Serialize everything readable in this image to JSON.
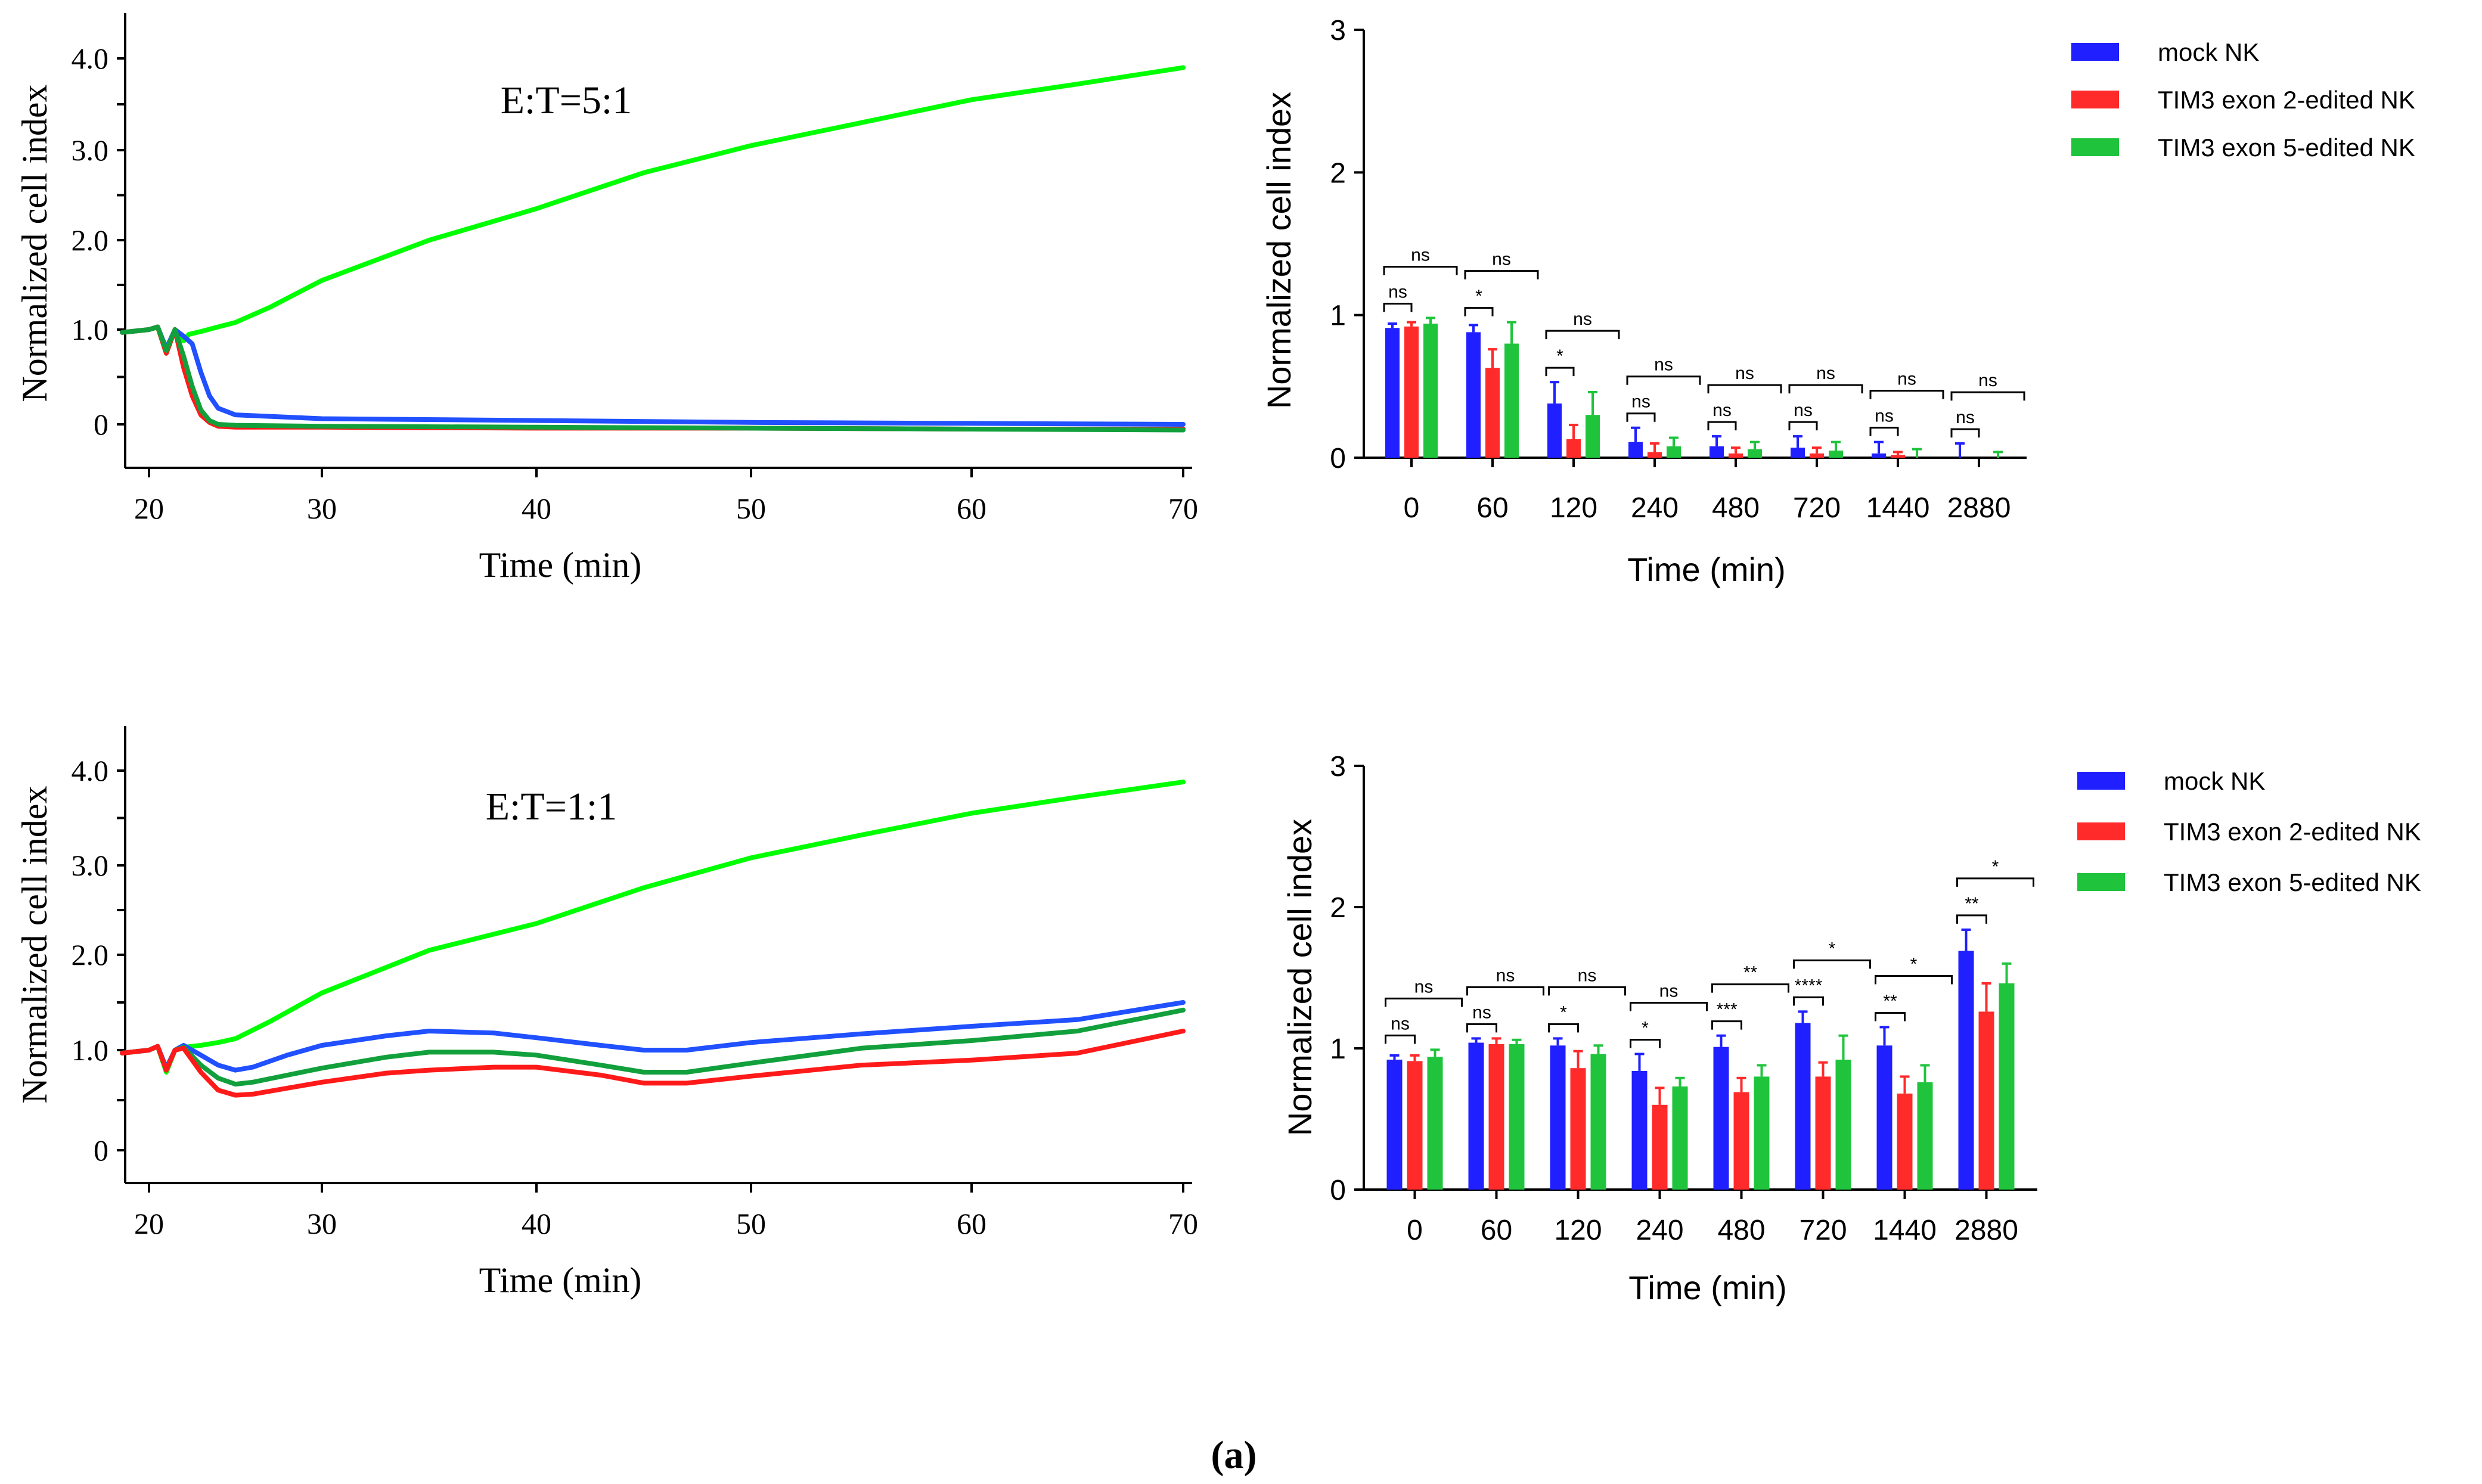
{
  "caption": "(a)",
  "chart_data": [
    {
      "id": "line_5_1",
      "type": "line",
      "annotation": "E:T=5:1",
      "xlabel": "Time (min)",
      "ylabel": "Normalized cell index",
      "xlim": [
        18.5,
        70.5
      ],
      "ylim": [
        -0.5,
        4.5
      ],
      "xticks": [
        "20",
        "30",
        "40",
        "50",
        "60",
        "70"
      ],
      "yticks": [
        "0",
        "1.0",
        "2.0",
        "3.0",
        "4.0"
      ],
      "grid": false,
      "series": [
        {
          "color": "#00ff00",
          "points": [
            [
              18.5,
              0.97
            ],
            [
              20,
              1.0
            ],
            [
              20.5,
              1.03
            ],
            [
              21,
              0.75
            ],
            [
              21.5,
              1.0
            ],
            [
              22,
              0.88
            ],
            [
              22.3,
              0.95
            ],
            [
              23,
              0.98
            ],
            [
              24,
              1.03
            ],
            [
              25,
              1.08
            ],
            [
              27,
              1.25
            ],
            [
              30,
              1.55
            ],
            [
              35,
              2.0
            ],
            [
              40,
              2.35
            ],
            [
              45,
              2.75
            ],
            [
              50,
              3.05
            ],
            [
              55,
              3.3
            ],
            [
              60,
              3.55
            ],
            [
              65,
              3.72
            ],
            [
              70,
              3.9
            ]
          ]
        },
        {
          "color": "#2050ff",
          "points": [
            [
              18.5,
              0.97
            ],
            [
              20,
              1.0
            ],
            [
              20.5,
              1.03
            ],
            [
              21,
              0.8
            ],
            [
              21.5,
              1.0
            ],
            [
              22,
              0.93
            ],
            [
              22.5,
              0.85
            ],
            [
              23,
              0.55
            ],
            [
              23.5,
              0.3
            ],
            [
              24,
              0.17
            ],
            [
              25,
              0.1
            ],
            [
              30,
              0.06
            ],
            [
              40,
              0.04
            ],
            [
              50,
              0.02
            ],
            [
              60,
              0.01
            ],
            [
              70,
              0.0
            ]
          ]
        },
        {
          "color": "#ff1a1a",
          "points": [
            [
              18.5,
              0.97
            ],
            [
              20,
              1.0
            ],
            [
              20.5,
              1.03
            ],
            [
              21,
              0.75
            ],
            [
              21.5,
              1.0
            ],
            [
              22,
              0.6
            ],
            [
              22.5,
              0.3
            ],
            [
              23,
              0.1
            ],
            [
              23.5,
              0.02
            ],
            [
              24,
              -0.02
            ],
            [
              25,
              -0.03
            ],
            [
              30,
              -0.03
            ],
            [
              40,
              -0.04
            ],
            [
              50,
              -0.04
            ],
            [
              60,
              -0.05
            ],
            [
              70,
              -0.05
            ]
          ]
        },
        {
          "color": "#12a03c",
          "points": [
            [
              18.5,
              0.97
            ],
            [
              20,
              1.0
            ],
            [
              20.5,
              1.03
            ],
            [
              21,
              0.78
            ],
            [
              21.5,
              1.0
            ],
            [
              22,
              0.72
            ],
            [
              22.5,
              0.4
            ],
            [
              23,
              0.15
            ],
            [
              23.5,
              0.04
            ],
            [
              24,
              0.0
            ],
            [
              25,
              -0.01
            ],
            [
              30,
              -0.02
            ],
            [
              40,
              -0.03
            ],
            [
              50,
              -0.04
            ],
            [
              60,
              -0.05
            ],
            [
              70,
              -0.06
            ]
          ]
        }
      ]
    },
    {
      "id": "bar_5_1",
      "type": "bar",
      "xlabel": "Time (min)",
      "ylabel": "Normalized cell index",
      "ylim": [
        0,
        3
      ],
      "yticks": [
        "0",
        "1",
        "2",
        "3"
      ],
      "categories": [
        "0",
        "60",
        "120",
        "240",
        "480",
        "720",
        "1440",
        "2880"
      ],
      "series": [
        {
          "name": "mock NK",
          "color": "#1f1fff",
          "values": [
            0.91,
            0.88,
            0.38,
            0.11,
            0.08,
            0.07,
            0.03,
            0.0
          ],
          "err": [
            0.03,
            0.05,
            0.15,
            0.1,
            0.07,
            0.08,
            0.08,
            0.1
          ]
        },
        {
          "name": "TIM3 exon 2-edited NK",
          "color": "#ff2a2a",
          "values": [
            0.92,
            0.63,
            0.13,
            0.04,
            0.03,
            0.03,
            0.02,
            0.0
          ],
          "err": [
            0.03,
            0.13,
            0.1,
            0.06,
            0.04,
            0.04,
            0.02,
            0.0
          ]
        },
        {
          "name": "TIM3 exon 5-edited NK",
          "color": "#1fc43c",
          "values": [
            0.94,
            0.8,
            0.3,
            0.08,
            0.06,
            0.05,
            0.0,
            0.0
          ],
          "err": [
            0.04,
            0.15,
            0.16,
            0.06,
            0.05,
            0.06,
            0.06,
            0.04
          ]
        }
      ],
      "significance": {
        "near": [
          "ns",
          "*",
          "*",
          "ns",
          "ns",
          "ns",
          "ns",
          "ns"
        ],
        "far": [
          "ns",
          "ns",
          "ns",
          "ns",
          "ns",
          "ns",
          "ns",
          "ns"
        ]
      },
      "legend_position": "top-right"
    },
    {
      "id": "line_1_1",
      "type": "line",
      "annotation": "E:T=1:1",
      "xlabel": "Time (min)",
      "ylabel": "Normalized cell index",
      "xlim": [
        18.5,
        70.5
      ],
      "ylim": [
        -0.5,
        4.5
      ],
      "xticks": [
        "20",
        "30",
        "40",
        "50",
        "60",
        "70"
      ],
      "yticks": [
        "0",
        "1.0",
        "2.0",
        "3.0",
        "4.0"
      ],
      "grid": false,
      "series": [
        {
          "color": "#00ff00",
          "points": [
            [
              18.5,
              0.97
            ],
            [
              20,
              1.0
            ],
            [
              20.5,
              1.04
            ],
            [
              21,
              0.78
            ],
            [
              21.5,
              1.0
            ],
            [
              22,
              1.03
            ],
            [
              23,
              1.05
            ],
            [
              24,
              1.08
            ],
            [
              25,
              1.12
            ],
            [
              27,
              1.3
            ],
            [
              30,
              1.6
            ],
            [
              35,
              2.05
            ],
            [
              40,
              2.35
            ],
            [
              45,
              2.75
            ],
            [
              50,
              3.08
            ],
            [
              55,
              3.32
            ],
            [
              60,
              3.55
            ],
            [
              65,
              3.72
            ],
            [
              70,
              3.88
            ]
          ]
        },
        {
          "color": "#2050ff",
          "points": [
            [
              18.5,
              0.97
            ],
            [
              20,
              1.0
            ],
            [
              20.5,
              1.04
            ],
            [
              21,
              0.82
            ],
            [
              21.5,
              1.0
            ],
            [
              22,
              1.05
            ],
            [
              23,
              0.95
            ],
            [
              24,
              0.85
            ],
            [
              25,
              0.8
            ],
            [
              26,
              0.83
            ],
            [
              28,
              0.95
            ],
            [
              30,
              1.05
            ],
            [
              33,
              1.15
            ],
            [
              35,
              1.2
            ],
            [
              38,
              1.18
            ],
            [
              40,
              1.13
            ],
            [
              43,
              1.05
            ],
            [
              45,
              1.0
            ],
            [
              47,
              1.0
            ],
            [
              50,
              1.08
            ],
            [
              55,
              1.17
            ],
            [
              60,
              1.25
            ],
            [
              65,
              1.32
            ],
            [
              70,
              1.5
            ]
          ]
        },
        {
          "color": "#12a03c",
          "points": [
            [
              18.5,
              0.97
            ],
            [
              20,
              1.0
            ],
            [
              20.5,
              1.04
            ],
            [
              21,
              0.8
            ],
            [
              21.5,
              1.0
            ],
            [
              22,
              1.03
            ],
            [
              23,
              0.85
            ],
            [
              24,
              0.72
            ],
            [
              25,
              0.66
            ],
            [
              26,
              0.68
            ],
            [
              28,
              0.75
            ],
            [
              30,
              0.82
            ],
            [
              33,
              0.93
            ],
            [
              35,
              0.98
            ],
            [
              38,
              0.98
            ],
            [
              40,
              0.95
            ],
            [
              43,
              0.85
            ],
            [
              45,
              0.78
            ],
            [
              47,
              0.78
            ],
            [
              50,
              0.87
            ],
            [
              55,
              1.02
            ],
            [
              60,
              1.1
            ],
            [
              65,
              1.2
            ],
            [
              70,
              1.42
            ]
          ]
        },
        {
          "color": "#ff1a1a",
          "points": [
            [
              18.5,
              0.97
            ],
            [
              20,
              1.0
            ],
            [
              20.5,
              1.04
            ],
            [
              21,
              0.8
            ],
            [
              21.5,
              1.0
            ],
            [
              22,
              1.02
            ],
            [
              23,
              0.78
            ],
            [
              24,
              0.6
            ],
            [
              25,
              0.55
            ],
            [
              26,
              0.56
            ],
            [
              28,
              0.62
            ],
            [
              30,
              0.68
            ],
            [
              33,
              0.77
            ],
            [
              35,
              0.8
            ],
            [
              38,
              0.83
            ],
            [
              40,
              0.83
            ],
            [
              43,
              0.75
            ],
            [
              45,
              0.67
            ],
            [
              47,
              0.67
            ],
            [
              50,
              0.74
            ],
            [
              55,
              0.85
            ],
            [
              60,
              0.9
            ],
            [
              65,
              0.97
            ],
            [
              70,
              1.2
            ]
          ]
        }
      ]
    },
    {
      "id": "bar_1_1",
      "type": "bar",
      "xlabel": "Time (min)",
      "ylabel": "Normalized cell index",
      "ylim": [
        0,
        3
      ],
      "yticks": [
        "0",
        "1",
        "2",
        "3"
      ],
      "categories": [
        "0",
        "60",
        "120",
        "240",
        "480",
        "720",
        "1440",
        "2880"
      ],
      "series": [
        {
          "name": "mock NK",
          "color": "#1f1fff",
          "values": [
            0.92,
            1.04,
            1.02,
            0.84,
            1.01,
            1.18,
            1.02,
            1.69
          ],
          "err": [
            0.03,
            0.03,
            0.05,
            0.12,
            0.08,
            0.08,
            0.13,
            0.15
          ]
        },
        {
          "name": "TIM3 exon 2-edited NK",
          "color": "#ff2a2a",
          "values": [
            0.91,
            1.03,
            0.86,
            0.6,
            0.69,
            0.8,
            0.68,
            1.26
          ],
          "err": [
            0.04,
            0.04,
            0.12,
            0.12,
            0.1,
            0.1,
            0.12,
            0.2
          ]
        },
        {
          "name": "TIM3 exon 5-edited NK",
          "color": "#1fc43c",
          "values": [
            0.94,
            1.03,
            0.96,
            0.73,
            0.8,
            0.92,
            0.76,
            1.46
          ],
          "err": [
            0.05,
            0.03,
            0.06,
            0.06,
            0.08,
            0.17,
            0.12,
            0.14
          ]
        }
      ],
      "significance": {
        "near": [
          "ns",
          "ns",
          "*",
          "*",
          "***",
          "****",
          "**",
          "**"
        ],
        "far": [
          "ns",
          "ns",
          "ns",
          "ns",
          "**",
          "*",
          "*",
          "*"
        ]
      },
      "legend_position": "top-right"
    }
  ]
}
